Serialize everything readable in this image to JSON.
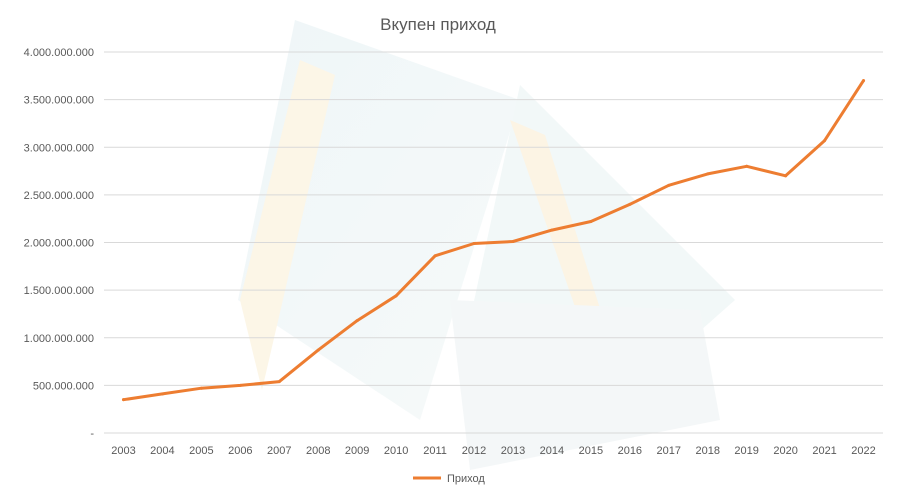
{
  "chart_data": {
    "type": "line",
    "title": "Вкупен приход",
    "xlabel": "",
    "ylabel": "",
    "categories": [
      "2003",
      "2004",
      "2005",
      "2006",
      "2007",
      "2008",
      "2009",
      "2010",
      "2011",
      "2012",
      "2013",
      "2014",
      "2015",
      "2016",
      "2017",
      "2018",
      "2019",
      "2020",
      "2021",
      "2022"
    ],
    "series": [
      {
        "name": "Приход",
        "color": "#ed7d31",
        "values": [
          350000000,
          410000000,
          470000000,
          500000000,
          540000000,
          870000000,
          1180000000,
          1440000000,
          1860000000,
          1990000000,
          2010000000,
          2130000000,
          2220000000,
          2400000000,
          2600000000,
          2720000000,
          2800000000,
          2700000000,
          3070000000,
          3700000000
        ]
      }
    ],
    "ylim": [
      0,
      4000000000
    ],
    "yticks": [
      {
        "value": 0,
        "label": "-"
      },
      {
        "value": 500000000,
        "label": "500.000.000"
      },
      {
        "value": 1000000000,
        "label": "1.000.000.000"
      },
      {
        "value": 1500000000,
        "label": "1.500.000.000"
      },
      {
        "value": 2000000000,
        "label": "2.000.000.000"
      },
      {
        "value": 2500000000,
        "label": "2.500.000.000"
      },
      {
        "value": 3000000000,
        "label": "3.000.000.000"
      },
      {
        "value": 3500000000,
        "label": "3.500.000.000"
      },
      {
        "value": 4000000000,
        "label": "4.000.000.000"
      }
    ],
    "grid": true,
    "legend_position": "bottom"
  }
}
